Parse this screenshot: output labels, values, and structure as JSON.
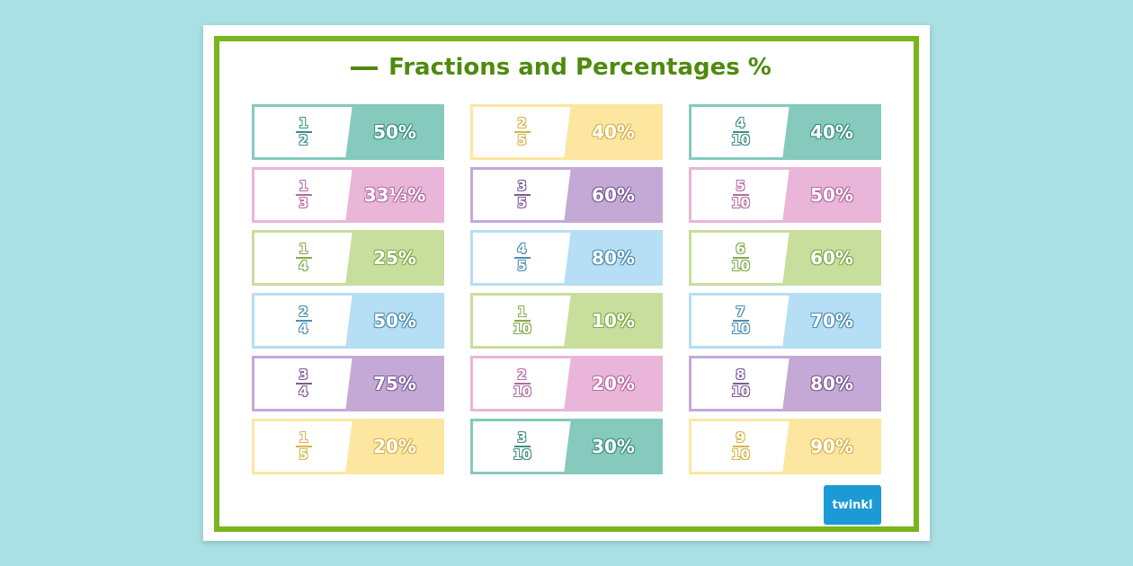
{
  "title": "Fractions and Percentages %",
  "logo_text": "twinkl",
  "colors": {
    "teal": "#86c9bd",
    "pink": "#e9b6d9",
    "green": "#c7de9d",
    "blue": "#b6def5",
    "purple": "#c4a9d6",
    "yellow": "#fde6a0",
    "frame": "#79b51c",
    "title": "#4f8a0d"
  },
  "columns": [
    {
      "cards": [
        {
          "numerator": "1",
          "denominator": "2",
          "percentage": "50%",
          "color": "#86c9bd",
          "outline": "#3b8f84"
        },
        {
          "numerator": "1",
          "denominator": "3",
          "percentage": "33⅓%",
          "color": "#e9b6d9",
          "outline": "#b56aa2"
        },
        {
          "numerator": "1",
          "denominator": "4",
          "percentage": "25%",
          "color": "#c7de9d",
          "outline": "#84a94a"
        },
        {
          "numerator": "2",
          "denominator": "4",
          "percentage": "50%",
          "color": "#b6def5",
          "outline": "#4c8eb2"
        },
        {
          "numerator": "3",
          "denominator": "4",
          "percentage": "75%",
          "color": "#c4a9d6",
          "outline": "#7d5a98"
        },
        {
          "numerator": "1",
          "denominator": "5",
          "percentage": "20%",
          "color": "#fde6a0",
          "outline": "#d8b24a"
        }
      ]
    },
    {
      "cards": [
        {
          "numerator": "2",
          "denominator": "5",
          "percentage": "40%",
          "color": "#fde6a0",
          "outline": "#d8b24a"
        },
        {
          "numerator": "3",
          "denominator": "5",
          "percentage": "60%",
          "color": "#c4a9d6",
          "outline": "#7d5a98"
        },
        {
          "numerator": "4",
          "denominator": "5",
          "percentage": "80%",
          "color": "#b6def5",
          "outline": "#4c8eb2"
        },
        {
          "numerator": "1",
          "denominator": "10",
          "percentage": "10%",
          "color": "#c7de9d",
          "outline": "#84a94a"
        },
        {
          "numerator": "2",
          "denominator": "10",
          "percentage": "20%",
          "color": "#e9b6d9",
          "outline": "#b56aa2"
        },
        {
          "numerator": "3",
          "denominator": "10",
          "percentage": "30%",
          "color": "#86c9bd",
          "outline": "#3b8f84"
        }
      ]
    },
    {
      "cards": [
        {
          "numerator": "4",
          "denominator": "10",
          "percentage": "40%",
          "color": "#86c9bd",
          "outline": "#3b8f84"
        },
        {
          "numerator": "5",
          "denominator": "10",
          "percentage": "50%",
          "color": "#e9b6d9",
          "outline": "#b56aa2"
        },
        {
          "numerator": "6",
          "denominator": "10",
          "percentage": "60%",
          "color": "#c7de9d",
          "outline": "#84a94a"
        },
        {
          "numerator": "7",
          "denominator": "10",
          "percentage": "70%",
          "color": "#b6def5",
          "outline": "#4c8eb2"
        },
        {
          "numerator": "8",
          "denominator": "10",
          "percentage": "80%",
          "color": "#c4a9d6",
          "outline": "#7d5a98"
        },
        {
          "numerator": "9",
          "denominator": "10",
          "percentage": "90%",
          "color": "#fde6a0",
          "outline": "#d8b24a"
        }
      ]
    }
  ]
}
